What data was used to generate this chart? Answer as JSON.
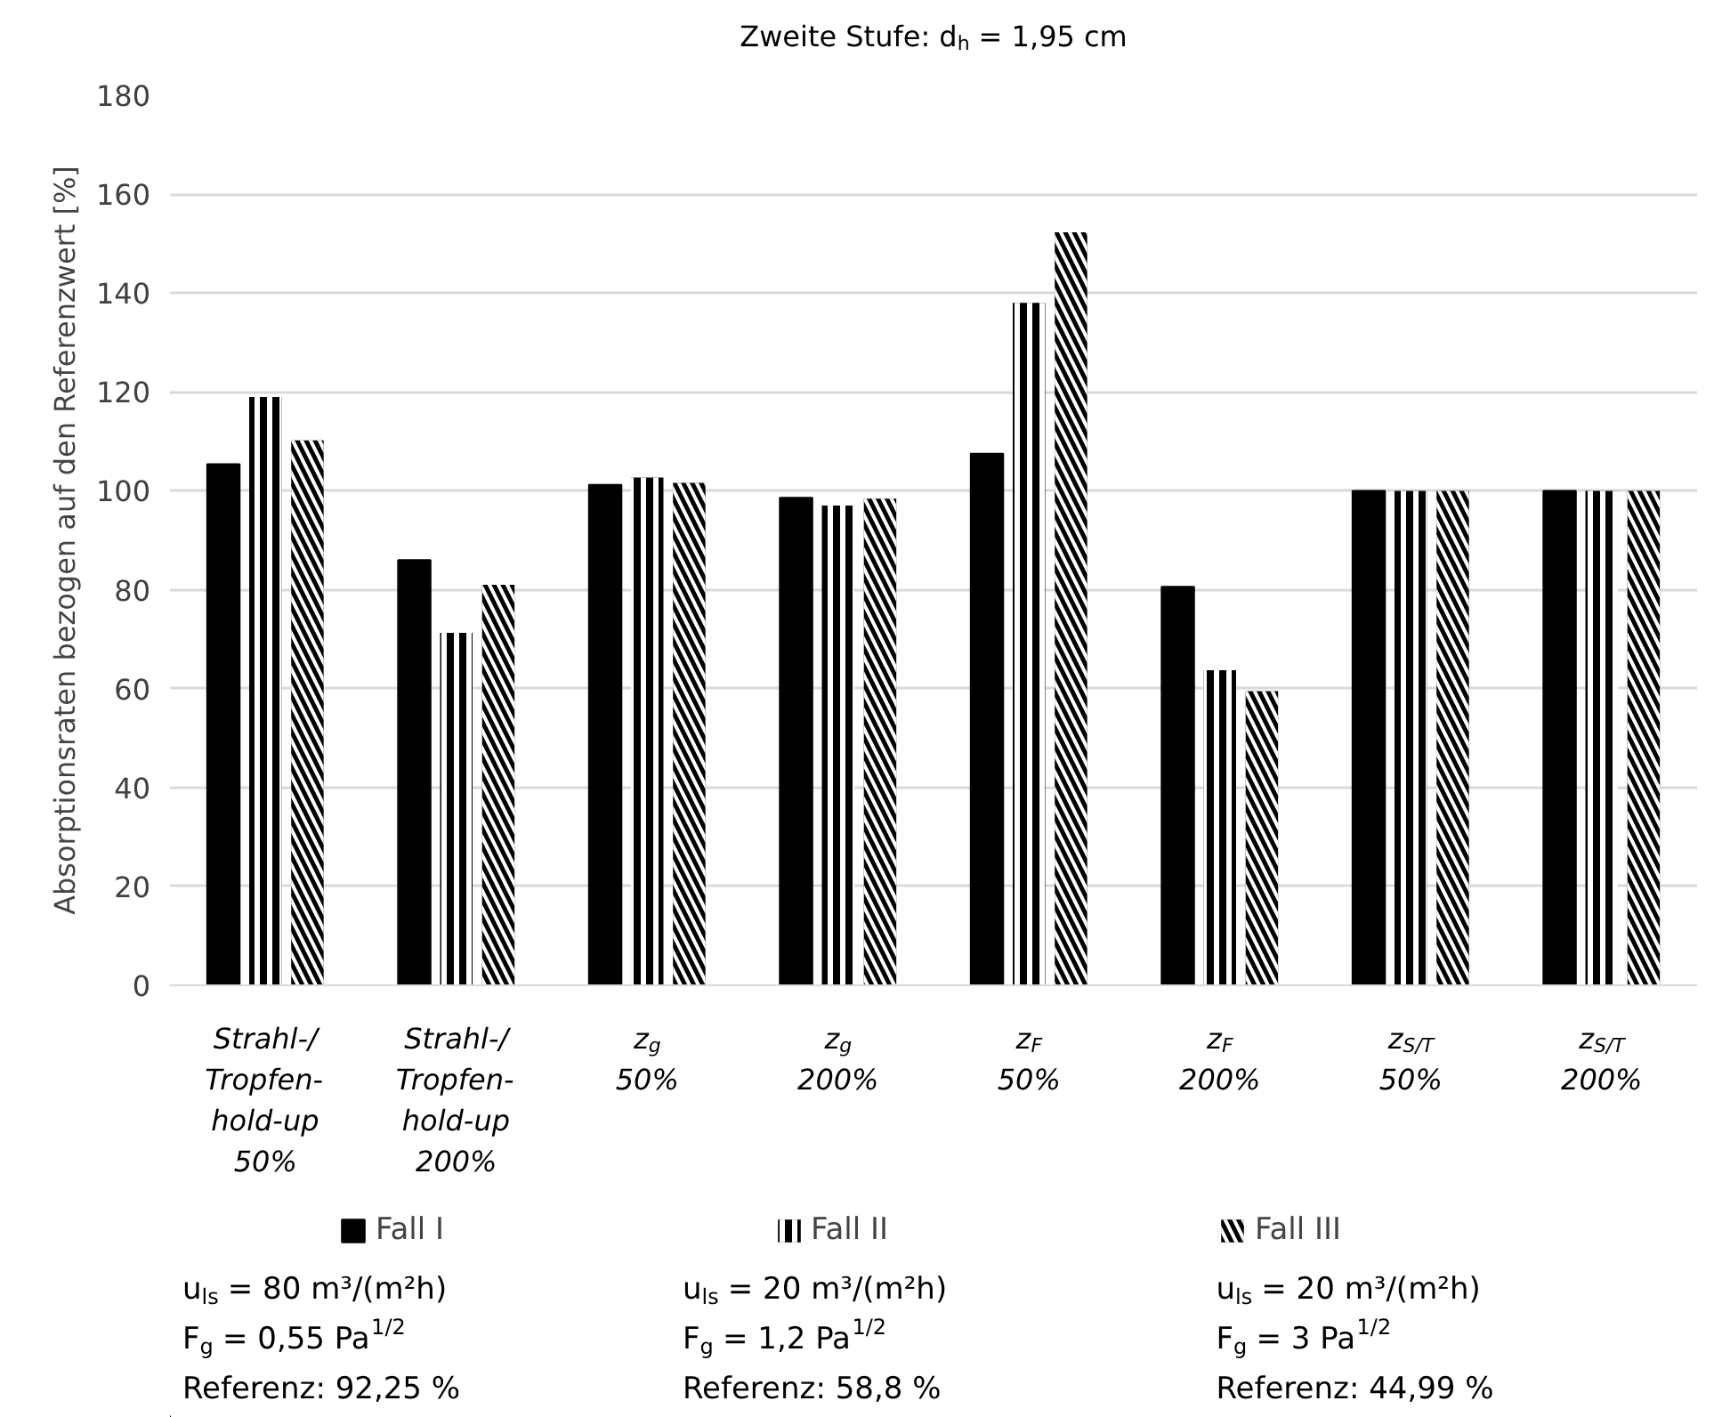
{
  "chart_data": {
    "type": "bar",
    "title": "Zweite Stufe: d$_{h}$ = 1,95 cm",
    "ylabel": "Absorptionsraten bezogen auf den Referenzwert [%]",
    "categories": [
      "Strahl-/\nTropfen-\nhold-up\n50%",
      "Strahl-/\nTropfen-\nhold-up\n200%",
      "z$_{g}$\n50%",
      "z$_{g}$\n200%",
      "z$_{F}$\n50%",
      "z$_{F}$\n200%",
      "z$_{S/T}$\n50%",
      "z$_{S/T}$\n200%"
    ],
    "series": [
      {
        "name": "Fall I",
        "color": "#000000",
        "values": [
          105.4,
          86.0,
          101.2,
          98.6,
          107.5,
          80.6,
          100,
          100
        ]
      },
      {
        "name": "Fall II",
        "color": "#000000",
        "values": [
          119,
          71.3,
          102.7,
          97,
          138,
          63.7,
          100,
          100
        ]
      },
      {
        "name": "Fall III",
        "color": "#000000",
        "values": [
          110.2,
          81,
          101.6,
          98.4,
          152.3,
          59.5,
          100,
          100
        ]
      }
    ],
    "ylim": [
      0,
      180
    ],
    "yticks": [
      0,
      20,
      40,
      60,
      80,
      100,
      120,
      140,
      160,
      180
    ],
    "grid": "y",
    "legend": "bottom",
    "annotations": [
      "u$_{ls}$ = 80 m³/(m²h)\nF$_{g}$ = 0,55 Pa$^{1/2}$\nReferenz:  92,25 %",
      "u$_{ls}$ = 20 m³/(m²h)\nF$_{g}$ = 1,2 Pa$^{1/2}$\nReferenz:  58,8 %",
      "u$_{ls}$ = 20 m³/(m²h)\nF$_{g}$ = 3 Pa$^{1/2}$\nReferenz:  44,99 %"
    ]
  }
}
